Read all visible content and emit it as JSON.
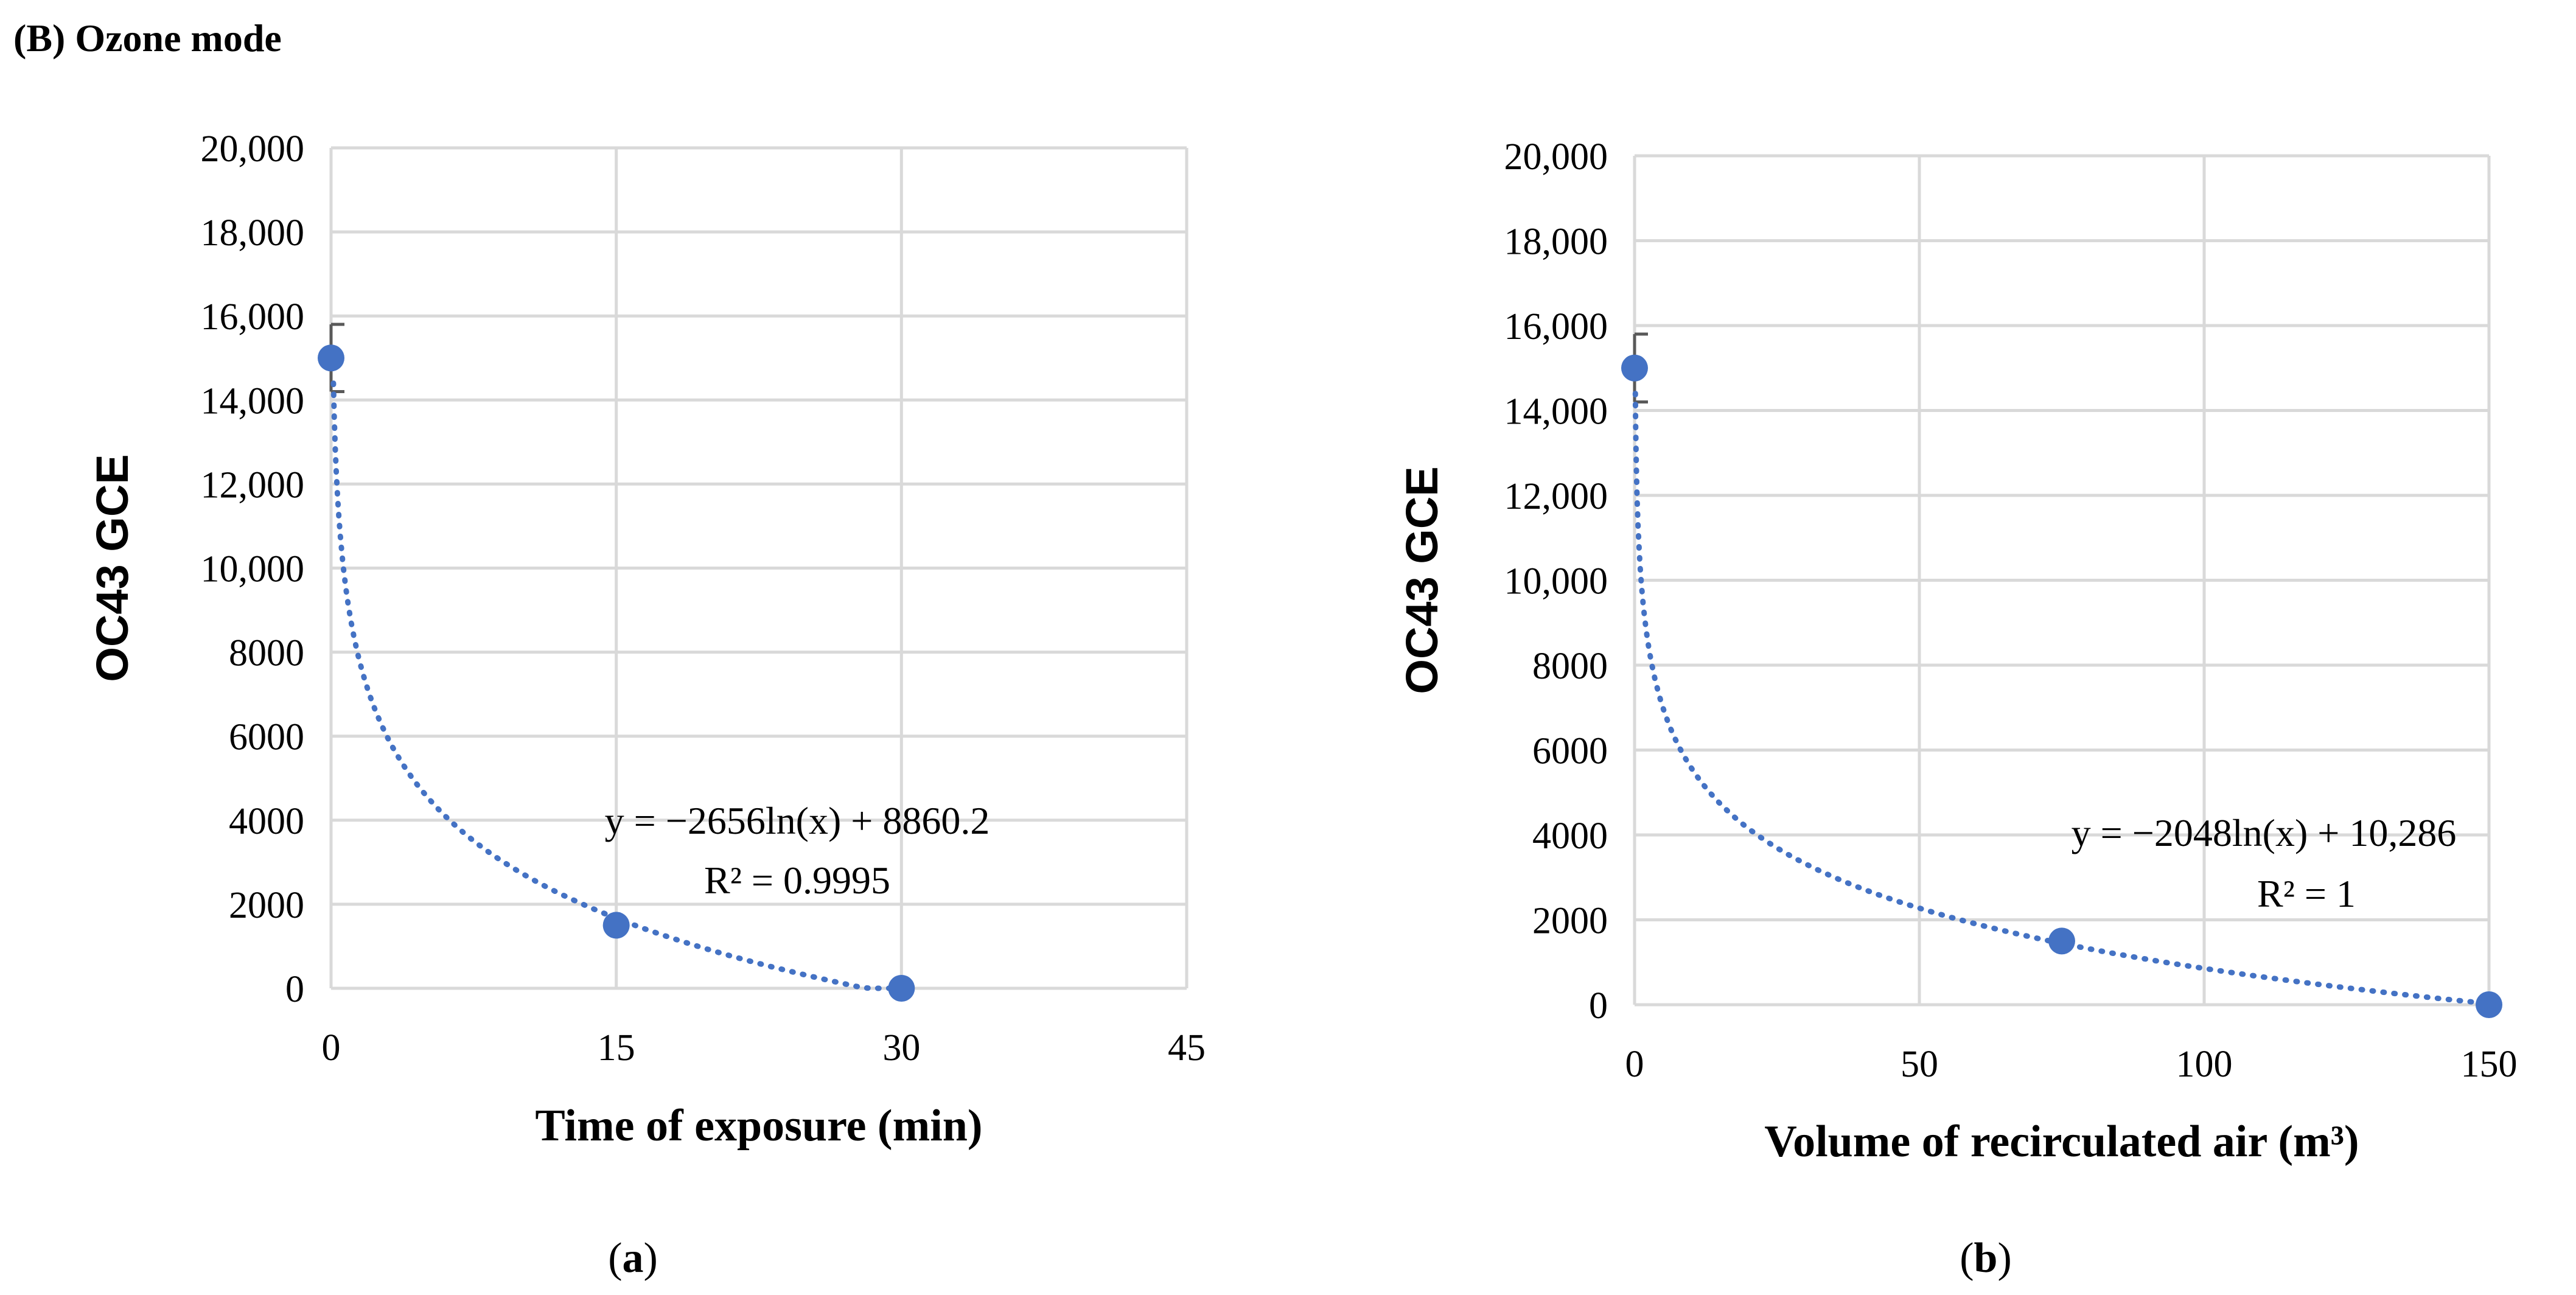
{
  "figure": {
    "heading_label": "(B)",
    "heading_title": "Ozone mode"
  },
  "chart_data": [
    {
      "type": "scatter",
      "panel_label": "a",
      "title": "",
      "xlabel": "Time of exposure (min)",
      "ylabel": "OC43 GCE",
      "xlim": [
        0,
        45
      ],
      "ylim": [
        0,
        20000
      ],
      "xticks": [
        0,
        15,
        30,
        45
      ],
      "xtick_labels": [
        "0",
        "15",
        "30",
        "45"
      ],
      "yticks": [
        0,
        2000,
        4000,
        6000,
        8000,
        10000,
        12000,
        14000,
        16000,
        18000,
        20000
      ],
      "ytick_labels": [
        "0",
        "2000",
        "4000",
        "6000",
        "8000",
        "10,000",
        "12,000",
        "14,000",
        "16,000",
        "18,000",
        "20,000"
      ],
      "grid": true,
      "points": [
        {
          "x": 0,
          "y": 15000
        },
        {
          "x": 15,
          "y": 1500
        },
        {
          "x": 30,
          "y": 0
        }
      ],
      "error_bar": {
        "x": 0,
        "low": 14200,
        "high": 15800
      },
      "trendline": {
        "type": "log",
        "a": -2656,
        "b": 8860.2,
        "style": "dotted"
      },
      "equation": "y = −2656ln(x) + 8860.2",
      "r_squared": "R² = 0.9995",
      "color": "#4472C4"
    },
    {
      "type": "scatter",
      "panel_label": "b",
      "title": "",
      "xlabel": "Volume of recirculated air (m³)",
      "ylabel": "OC43 GCE",
      "xlim": [
        0,
        150
      ],
      "ylim": [
        0,
        20000
      ],
      "xticks": [
        0,
        50,
        100,
        150
      ],
      "xtick_labels": [
        "0",
        "50",
        "100",
        "150"
      ],
      "yticks": [
        0,
        2000,
        4000,
        6000,
        8000,
        10000,
        12000,
        14000,
        16000,
        18000,
        20000
      ],
      "ytick_labels": [
        "0",
        "2000",
        "4000",
        "6000",
        "8000",
        "10,000",
        "12,000",
        "14,000",
        "16,000",
        "18,000",
        "20,000"
      ],
      "grid": true,
      "points": [
        {
          "x": 0,
          "y": 15000
        },
        {
          "x": 75,
          "y": 1500
        },
        {
          "x": 150,
          "y": 0
        }
      ],
      "error_bar": {
        "x": 0,
        "low": 14200,
        "high": 15800
      },
      "trendline": {
        "type": "log",
        "a": -2048,
        "b": 10286,
        "style": "dotted"
      },
      "equation": "y = −2048ln(x) + 10,286",
      "r_squared": "R² = 1",
      "color": "#4472C4"
    }
  ]
}
